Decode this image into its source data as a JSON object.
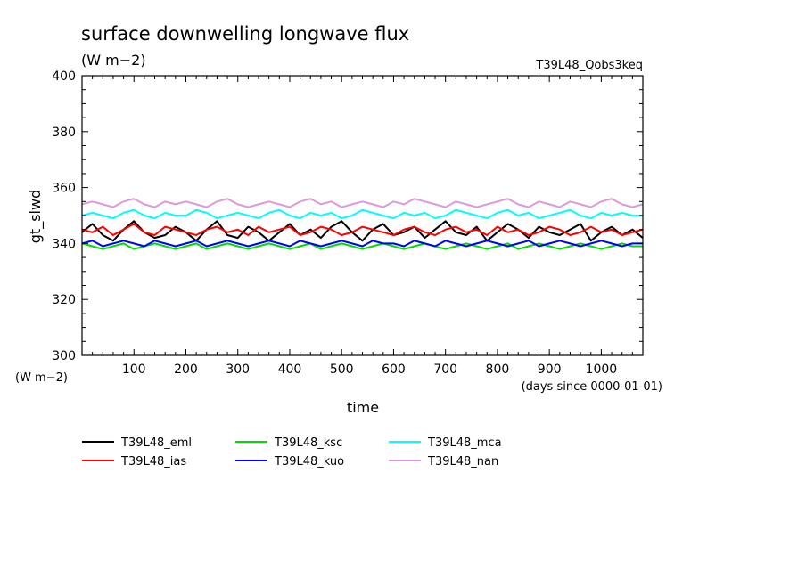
{
  "chart_data": {
    "type": "line",
    "title": "surface downwelling longwave flux",
    "subtitle_units": "(W m−2)",
    "experiment": "T39L48_Qobs3keq",
    "ylabel": "gt_slwd",
    "ylabel_units": "(W m−2)",
    "xlabel": "time",
    "xlabel_units": "(days since 0000-01-01)",
    "xlim": [
      0,
      1080
    ],
    "ylim": [
      300,
      400
    ],
    "x_ticks": [
      100,
      200,
      300,
      400,
      500,
      600,
      700,
      800,
      900,
      1000
    ],
    "y_ticks": [
      300,
      320,
      340,
      360,
      380,
      400
    ],
    "x_sample_step_days": 20,
    "series": [
      {
        "name": "T39L48_eml",
        "color": "#000000",
        "values": [
          344,
          347,
          343,
          341,
          345,
          348,
          344,
          342,
          343,
          346,
          344,
          341,
          345,
          348,
          343,
          342,
          346,
          344,
          341,
          344,
          347,
          343,
          345,
          342,
          346,
          348,
          344,
          341,
          345,
          347,
          343,
          344,
          346,
          342,
          345,
          348,
          344,
          343,
          346,
          341,
          344,
          347,
          345,
          342,
          346,
          344,
          343,
          345,
          347,
          341,
          344,
          346,
          343,
          345,
          342
        ]
      },
      {
        "name": "T39L48_ias",
        "color": "#ff0000",
        "values": [
          345,
          344,
          346,
          343,
          345,
          347,
          344,
          343,
          346,
          345,
          344,
          343,
          345,
          346,
          344,
          345,
          343,
          346,
          344,
          345,
          346,
          343,
          344,
          346,
          345,
          343,
          344,
          346,
          345,
          344,
          343,
          345,
          346,
          344,
          343,
          345,
          346,
          344,
          345,
          343,
          346,
          344,
          345,
          343,
          344,
          346,
          345,
          343,
          344,
          346,
          344,
          345,
          343,
          344,
          345
        ]
      },
      {
        "name": "T39L48_ksc",
        "color": "#00dd00",
        "values": [
          340,
          339,
          338,
          339,
          340,
          338,
          339,
          340,
          339,
          338,
          339,
          340,
          338,
          339,
          340,
          339,
          338,
          339,
          340,
          339,
          338,
          339,
          340,
          338,
          339,
          340,
          339,
          338,
          339,
          340,
          339,
          338,
          339,
          340,
          339,
          338,
          339,
          340,
          339,
          338,
          339,
          340,
          338,
          339,
          340,
          339,
          338,
          339,
          340,
          339,
          338,
          339,
          340,
          339,
          339
        ]
      },
      {
        "name": "T39L48_kuo",
        "color": "#0000ff",
        "values": [
          340,
          341,
          339,
          340,
          341,
          340,
          339,
          341,
          340,
          339,
          340,
          341,
          339,
          340,
          341,
          340,
          339,
          340,
          341,
          340,
          339,
          341,
          340,
          339,
          340,
          341,
          340,
          339,
          341,
          340,
          340,
          339,
          341,
          340,
          339,
          341,
          340,
          339,
          340,
          341,
          340,
          339,
          340,
          341,
          339,
          340,
          341,
          340,
          339,
          340,
          341,
          340,
          339,
          340,
          340
        ]
      },
      {
        "name": "T39L48_mca",
        "color": "#00ffff",
        "values": [
          350,
          351,
          350,
          349,
          351,
          352,
          350,
          349,
          351,
          350,
          350,
          352,
          351,
          349,
          350,
          351,
          350,
          349,
          351,
          352,
          350,
          349,
          351,
          350,
          351,
          349,
          350,
          352,
          351,
          350,
          349,
          351,
          350,
          351,
          349,
          350,
          352,
          351,
          350,
          349,
          351,
          352,
          350,
          351,
          349,
          350,
          351,
          352,
          350,
          349,
          351,
          350,
          351,
          350,
          350
        ]
      },
      {
        "name": "T39L48_nan",
        "color": "#dd99dd",
        "values": [
          354,
          355,
          354,
          353,
          355,
          356,
          354,
          353,
          355,
          354,
          355,
          354,
          353,
          355,
          356,
          354,
          353,
          354,
          355,
          354,
          353,
          355,
          356,
          354,
          355,
          353,
          354,
          355,
          354,
          353,
          355,
          354,
          356,
          355,
          354,
          353,
          355,
          354,
          353,
          354,
          355,
          356,
          354,
          353,
          355,
          354,
          353,
          355,
          354,
          353,
          355,
          356,
          354,
          353,
          354
        ]
      }
    ],
    "legend_position": "bottom-left"
  }
}
